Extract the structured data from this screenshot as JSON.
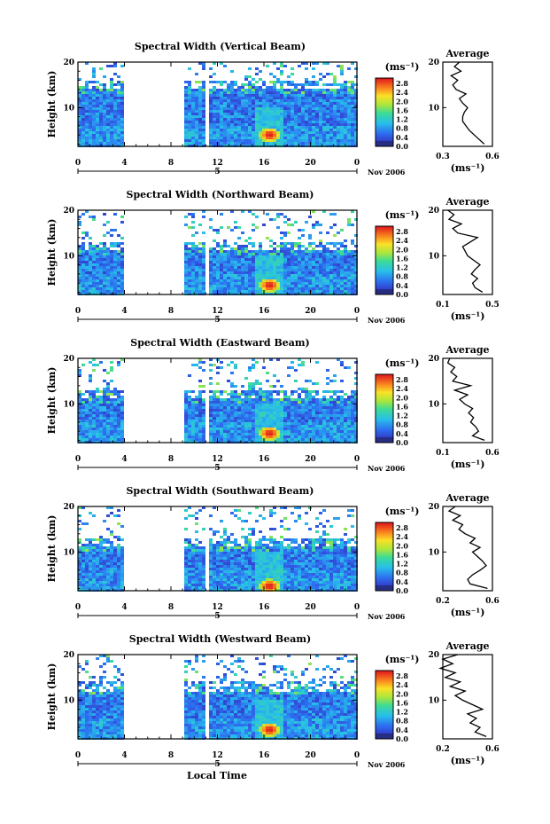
{
  "figure": {
    "xlabel": "Local Time",
    "date_label": "Nov 2006",
    "ylabel": "Height (km)",
    "unit_label": "(ms⁻¹)",
    "avg_title": "Average",
    "avg_xlabel": "(ms⁻¹)",
    "day_marker": "5"
  },
  "chart_data": [
    {
      "type": "heatmap",
      "title": "Spectral Width (Vertical Beam)",
      "x_ticks": [
        "0",
        "4",
        "8",
        "12",
        "16",
        "20",
        "0"
      ],
      "xlim": [
        0,
        24
      ],
      "y_ticks": [
        "10",
        "20"
      ],
      "ylim": [
        1.5,
        20
      ],
      "gaps_hours": [
        [
          3.9,
          9.1
        ],
        [
          11.0,
          11.3
        ]
      ],
      "echo_top_km": 16,
      "hotspot": {
        "time_h": 16.5,
        "height_km": 4,
        "value": 2.6
      },
      "colorbar": {
        "min": 0.0,
        "max": 2.8,
        "ticks": [
          "2.8",
          "2.4",
          "2.0",
          "1.6",
          "1.2",
          "0.8",
          "0.4",
          "0.0"
        ]
      },
      "average_profile": {
        "xlim": [
          0.3,
          0.6
        ],
        "x_ticks": [
          "0.3",
          "0.6"
        ],
        "y_ticks": [
          "10",
          "20"
        ],
        "height": [
          2,
          3,
          4,
          5,
          6,
          7,
          8,
          9,
          10,
          11,
          12,
          13,
          14,
          15,
          16,
          17,
          18,
          19,
          20
        ],
        "value": [
          0.55,
          0.52,
          0.49,
          0.46,
          0.44,
          0.42,
          0.42,
          0.43,
          0.45,
          0.42,
          0.4,
          0.44,
          0.38,
          0.36,
          0.39,
          0.35,
          0.41,
          0.37,
          0.4
        ]
      }
    },
    {
      "type": "heatmap",
      "title": "Spectral Width (Northward Beam)",
      "x_ticks": [
        "0",
        "4",
        "8",
        "12",
        "16",
        "20",
        "0"
      ],
      "xlim": [
        0,
        24
      ],
      "y_ticks": [
        "10",
        "20"
      ],
      "ylim": [
        1.5,
        20
      ],
      "gaps_hours": [
        [
          3.9,
          9.1
        ],
        [
          11.0,
          11.3
        ]
      ],
      "echo_top_km": 13,
      "hotspot": {
        "time_h": 16.5,
        "height_km": 3.5,
        "value": 2.6
      },
      "colorbar": {
        "min": 0.0,
        "max": 2.8,
        "ticks": [
          "2.8",
          "2.4",
          "2.0",
          "1.6",
          "1.2",
          "0.8",
          "0.4",
          "0.0"
        ]
      },
      "average_profile": {
        "xlim": [
          0.1,
          0.5
        ],
        "x_ticks": [
          "0.1",
          "0.5"
        ],
        "y_ticks": [
          "10",
          "20"
        ],
        "height": [
          2,
          3,
          4,
          5,
          6,
          7,
          8,
          9,
          10,
          11,
          12,
          13,
          14,
          15,
          16,
          17,
          18,
          19,
          20
        ],
        "value": [
          0.42,
          0.36,
          0.34,
          0.38,
          0.33,
          0.36,
          0.4,
          0.35,
          0.3,
          0.28,
          0.26,
          0.32,
          0.38,
          0.22,
          0.18,
          0.25,
          0.15,
          0.19,
          0.14
        ]
      }
    },
    {
      "type": "heatmap",
      "title": "Spectral Width (Eastward Beam)",
      "x_ticks": [
        "0",
        "4",
        "8",
        "12",
        "16",
        "20",
        "0"
      ],
      "xlim": [
        0,
        24
      ],
      "y_ticks": [
        "10",
        "20"
      ],
      "ylim": [
        1.5,
        20
      ],
      "gaps_hours": [
        [
          3.9,
          9.1
        ],
        [
          11.0,
          11.3
        ]
      ],
      "echo_top_km": 13,
      "hotspot": {
        "time_h": 16.5,
        "height_km": 3.5,
        "value": 2.6
      },
      "colorbar": {
        "min": 0.0,
        "max": 2.8,
        "ticks": [
          "2.8",
          "2.4",
          "2.0",
          "1.6",
          "1.2",
          "0.8",
          "0.4",
          "0.0"
        ]
      },
      "average_profile": {
        "xlim": [
          0.1,
          0.6
        ],
        "x_ticks": [
          "0.1",
          "0.6"
        ],
        "y_ticks": [
          "10",
          "20"
        ],
        "height": [
          2,
          3,
          4,
          5,
          6,
          7,
          8,
          9,
          10,
          11,
          12,
          13,
          14,
          15,
          16,
          17,
          18,
          19,
          20
        ],
        "value": [
          0.52,
          0.4,
          0.46,
          0.43,
          0.38,
          0.41,
          0.36,
          0.4,
          0.32,
          0.27,
          0.35,
          0.22,
          0.38,
          0.2,
          0.24,
          0.18,
          0.22,
          0.15,
          0.17
        ]
      }
    },
    {
      "type": "heatmap",
      "title": "Spectral Width (Southward Beam)",
      "x_ticks": [
        "0",
        "4",
        "8",
        "12",
        "16",
        "20",
        "0"
      ],
      "xlim": [
        0,
        24
      ],
      "y_ticks": [
        "10",
        "20"
      ],
      "ylim": [
        1.5,
        20
      ],
      "gaps_hours": [
        [
          3.9,
          9.1
        ],
        [
          11.0,
          11.3
        ]
      ],
      "echo_top_km": 13,
      "hotspot": {
        "time_h": 16.5,
        "height_km": 2.5,
        "value": 2.6
      },
      "colorbar": {
        "min": 0.0,
        "max": 2.8,
        "ticks": [
          "2.8",
          "2.4",
          "2.0",
          "1.6",
          "1.2",
          "0.8",
          "0.4",
          "0.0"
        ]
      },
      "average_profile": {
        "xlim": [
          0.2,
          0.6
        ],
        "x_ticks": [
          "0.2",
          "0.6"
        ],
        "y_ticks": [
          "10",
          "20"
        ],
        "height": [
          2,
          3,
          4,
          5,
          6,
          7,
          8,
          9,
          10,
          11,
          12,
          13,
          14,
          15,
          16,
          17,
          18,
          19,
          20
        ],
        "value": [
          0.56,
          0.42,
          0.4,
          0.44,
          0.5,
          0.55,
          0.52,
          0.48,
          0.44,
          0.5,
          0.42,
          0.46,
          0.38,
          0.33,
          0.36,
          0.28,
          0.34,
          0.25,
          0.3
        ]
      }
    },
    {
      "type": "heatmap",
      "title": "Spectral Width (Westward Beam)",
      "x_ticks": [
        "0",
        "4",
        "8",
        "12",
        "16",
        "20",
        "0"
      ],
      "xlim": [
        0,
        24
      ],
      "y_ticks": [
        "10",
        "20"
      ],
      "ylim": [
        1.5,
        20
      ],
      "gaps_hours": [
        [
          3.9,
          9.1
        ],
        [
          11.0,
          11.3
        ]
      ],
      "echo_top_km": 14,
      "hotspot": {
        "time_h": 16.5,
        "height_km": 3.5,
        "value": 2.6
      },
      "colorbar": {
        "min": 0.0,
        "max": 2.8,
        "ticks": [
          "2.8",
          "2.4",
          "2.0",
          "1.6",
          "1.2",
          "0.8",
          "0.4",
          "0.0"
        ]
      },
      "average_profile": {
        "xlim": [
          0.2,
          0.6
        ],
        "x_ticks": [
          "0.2",
          "0.6"
        ],
        "y_ticks": [
          "10",
          "20"
        ],
        "height": [
          2,
          3,
          4,
          5,
          6,
          7,
          8,
          9,
          10,
          11,
          12,
          13,
          14,
          15,
          16,
          17,
          18,
          19,
          20
        ],
        "value": [
          0.55,
          0.46,
          0.5,
          0.42,
          0.47,
          0.4,
          0.52,
          0.44,
          0.36,
          0.3,
          0.38,
          0.26,
          0.34,
          0.22,
          0.3,
          0.18,
          0.28,
          0.2,
          0.32
        ]
      }
    }
  ]
}
